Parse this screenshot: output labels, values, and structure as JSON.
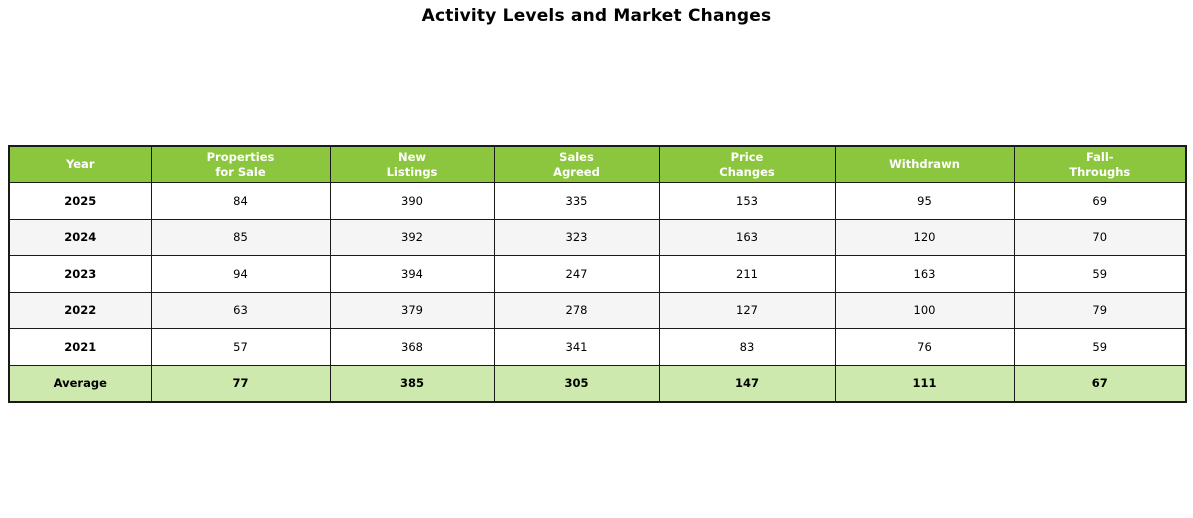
{
  "title": "Activity Levels and Market Changes",
  "colors": {
    "header_bg": "#8cc63e",
    "header_text": "#ffffff",
    "average_row_bg": "#cde9ad",
    "alt_row_bg": "#f5f5f5",
    "border": "#1a1a1a"
  },
  "chart_data": {
    "type": "table",
    "title": "Activity Levels and Market Changes",
    "columns": [
      "Year",
      "Properties\nfor Sale",
      "New\nListings",
      "Sales\nAgreed",
      "Price\nChanges",
      "Withdrawn",
      "Fall-\nThroughs"
    ],
    "rows": [
      {
        "year": "2025",
        "values": [
          84,
          390,
          335,
          153,
          95,
          69
        ]
      },
      {
        "year": "2024",
        "values": [
          85,
          392,
          323,
          163,
          120,
          70
        ]
      },
      {
        "year": "2023",
        "values": [
          94,
          394,
          247,
          211,
          163,
          59
        ]
      },
      {
        "year": "2022",
        "values": [
          63,
          379,
          278,
          127,
          100,
          79
        ]
      },
      {
        "year": "2021",
        "values": [
          57,
          368,
          341,
          83,
          76,
          59
        ]
      }
    ],
    "average_row": {
      "label": "Average",
      "values": [
        77,
        385,
        305,
        147,
        111,
        67
      ]
    }
  }
}
